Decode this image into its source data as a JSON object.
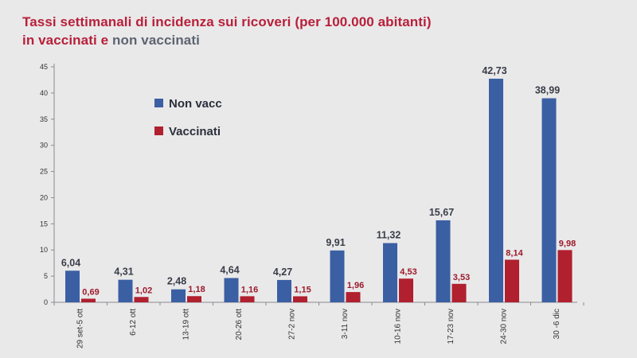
{
  "colors": {
    "title": "#b8203a",
    "title_muted": "#5d6470",
    "non_vacc": "#3b5fa3",
    "vaccinati": "#b0202e",
    "non_vacc_label": "#3a3d48",
    "vaccinati_label": "#9c1a2a",
    "axis": "#8a8a90",
    "tick": "#333333"
  },
  "chart_data": {
    "type": "bar",
    "title_line1": "Tassi settimanali di incidenza sui ricoveri (per 100.000 abitanti)",
    "title_line2_part1": "in vaccinati e ",
    "title_line2_part2": "non vaccinati",
    "categories": [
      "29 set-5 ott",
      "6-12 ott",
      "13-19 ott",
      "20-26 ott",
      "27-2 nov",
      "3-11 nov",
      "10-16 nov",
      "17-23 nov",
      "24-30 nov",
      "30 -6 dic"
    ],
    "series": [
      {
        "name": "Non vacc",
        "values": [
          6.04,
          4.31,
          2.48,
          4.64,
          4.27,
          9.91,
          11.32,
          15.67,
          42.73,
          38.99
        ],
        "labels": [
          "6,04",
          "4,31",
          "2,48",
          "4,64",
          "4,27",
          "9,91",
          "11,32",
          "15,67",
          "42,73",
          "38,99"
        ]
      },
      {
        "name": "Vaccinati",
        "values": [
          0.69,
          1.02,
          1.18,
          1.16,
          1.15,
          1.96,
          4.53,
          3.53,
          8.14,
          9.98
        ],
        "labels": [
          "0,69",
          "1,02",
          "1,18",
          "1,16",
          "1,15",
          "1,96",
          "4,53",
          "3,53",
          "8,14",
          "9,98"
        ]
      }
    ],
    "yticks": [
      "0",
      "5",
      "10",
      "15",
      "20",
      "25",
      "30",
      "35",
      "40",
      "45"
    ],
    "ylim": [
      0,
      45
    ],
    "grid": false,
    "legend_position": "top-left"
  }
}
